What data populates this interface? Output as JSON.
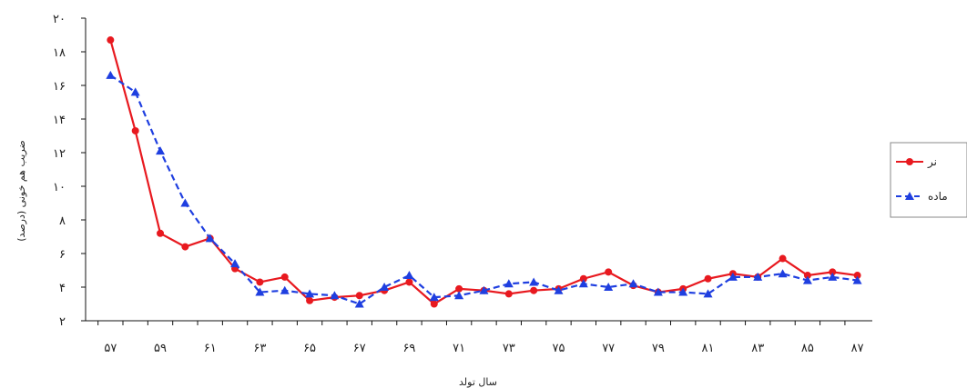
{
  "chart_data": {
    "type": "line",
    "xlabel": "سال تولد",
    "ylabel": "ضریب هم خونی (درصد)",
    "ylim": [
      2,
      20
    ],
    "yticks": [
      "۲",
      "۴",
      "۶",
      "۸",
      "۱۰",
      "۱۲",
      "۱۴",
      "۱۶",
      "۱۸",
      "۲۰"
    ],
    "yticks_values": [
      2,
      4,
      6,
      8,
      10,
      12,
      14,
      16,
      18,
      20
    ],
    "xtick_labels": [
      "۵۷",
      "۵۹",
      "۶۱",
      "۶۳",
      "۶۵",
      "۶۷",
      "۶۹",
      "۷۱",
      "۷۳",
      "۷۵",
      "۷۷",
      "۷۹",
      "۸۱",
      "۸۳",
      "۸۵",
      "۸۷"
    ],
    "xtick_values": [
      57,
      59,
      61,
      63,
      65,
      67,
      69,
      71,
      73,
      75,
      77,
      79,
      81,
      83,
      85,
      87
    ],
    "grid": false,
    "legend_position": "right",
    "x": [
      57,
      58,
      59,
      60,
      61,
      62,
      63,
      64,
      65,
      66,
      67,
      68,
      69,
      70,
      71,
      72,
      73,
      74,
      75,
      76,
      77,
      78,
      79,
      80,
      81,
      82,
      83,
      84,
      85,
      86,
      87
    ],
    "series": [
      {
        "name": "نر",
        "color": "#e8191f",
        "style": "solid",
        "marker": "circle",
        "values": [
          18.7,
          13.3,
          7.2,
          6.4,
          6.9,
          5.1,
          4.3,
          4.6,
          3.2,
          3.4,
          3.5,
          3.8,
          4.3,
          3.0,
          3.9,
          3.8,
          3.6,
          3.8,
          3.9,
          4.5,
          4.9,
          4.1,
          3.7,
          3.9,
          4.5,
          4.8,
          4.6,
          5.7,
          4.7,
          4.9,
          4.7
        ]
      },
      {
        "name": "ماده",
        "color": "#1f3fe0",
        "style": "dashed",
        "marker": "triangle",
        "values": [
          16.6,
          15.6,
          12.1,
          9.0,
          6.9,
          5.4,
          3.7,
          3.8,
          3.6,
          3.5,
          3.0,
          4.0,
          4.7,
          3.4,
          3.5,
          3.8,
          4.2,
          4.3,
          3.8,
          4.2,
          4.0,
          4.2,
          3.7,
          3.7,
          3.6,
          4.6,
          4.6,
          4.8,
          4.4,
          4.6,
          4.4
        ]
      }
    ]
  }
}
